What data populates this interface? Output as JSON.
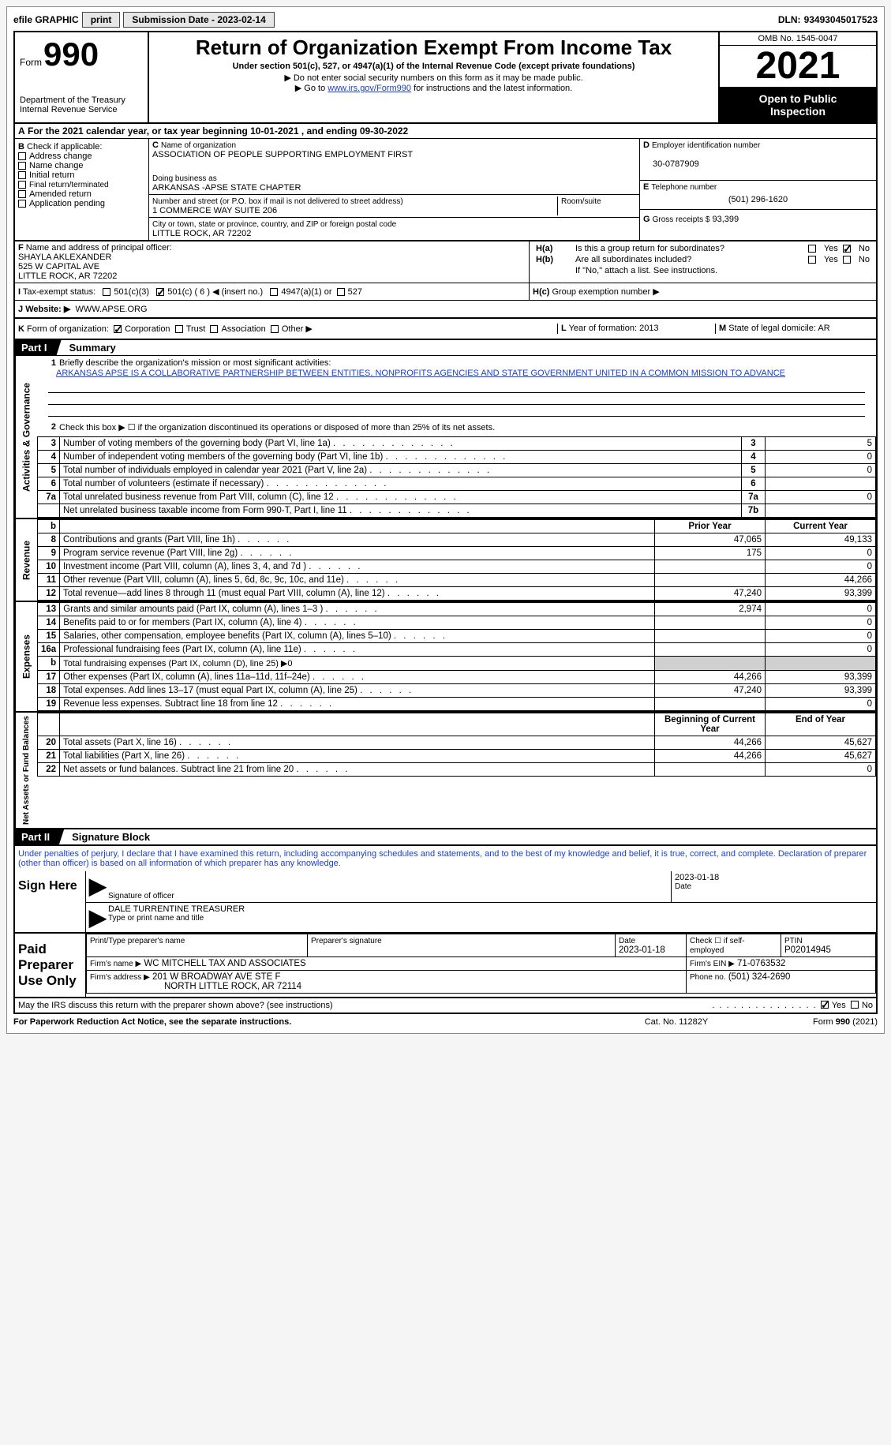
{
  "efile": {
    "graphic": "efile GRAPHIC",
    "print": "print",
    "sub_label": "Submission Date - 2023-02-14",
    "dln_label": "DLN:",
    "dln": "93493045017523"
  },
  "header": {
    "form_word": "Form",
    "form_num": "990",
    "dept": "Department of the Treasury",
    "irs": "Internal Revenue Service",
    "title": "Return of Organization Exempt From Income Tax",
    "sub1": "Under section 501(c), 527, or 4947(a)(1) of the Internal Revenue Code (except private foundations)",
    "sub2": "Do not enter social security numbers on this form as it may be made public.",
    "sub3_pre": "Go to ",
    "sub3_link": "www.irs.gov/Form990",
    "sub3_post": " for instructions and the latest information.",
    "omb": "OMB No. 1545-0047",
    "year": "2021",
    "otp1": "Open to Public",
    "otp2": "Inspection"
  },
  "period": {
    "a": "For the 2021 calendar year, or tax year beginning 10-01-2021    , and ending 09-30-2022"
  },
  "boxB": {
    "check_lbl": "Check if applicable:",
    "addr": "Address change",
    "name": "Name change",
    "init": "Initial return",
    "final": "Final return/terminated",
    "amend": "Amended return",
    "app": "Application pending"
  },
  "boxC": {
    "name_lbl": "Name of organization",
    "name": "ASSOCIATION OF PEOPLE SUPPORTING EMPLOYMENT FIRST",
    "dba_lbl": "Doing business as",
    "dba": "ARKANSAS -APSE STATE CHAPTER",
    "addr_lbl": "Number and street (or P.O. box if mail is not delivered to street address)",
    "room_lbl": "Room/suite",
    "addr": "1 COMMERCE WAY SUITE 206",
    "city_lbl": "City or town, state or province, country, and ZIP or foreign postal code",
    "city": "LITTLE ROCK, AR  72202"
  },
  "boxD": {
    "ein_lbl": "Employer identification number",
    "ein": "30-0787909",
    "tel_lbl": "Telephone number",
    "tel": "(501) 296-1620",
    "gross_lbl": "Gross receipts $",
    "gross": "93,399"
  },
  "boxF": {
    "lbl": "Name and address of principal officer:",
    "name": "SHAYLA AKLEXANDER",
    "addr1": "525 W CAPITAL AVE",
    "addr2": "LITTLE ROCK, AR  72202"
  },
  "boxH": {
    "a": "Is this a group return for subordinates?",
    "b": "Are all subordinates included?",
    "b_note": "If \"No,\" attach a list. See instructions.",
    "c": "Group exemption number ▶",
    "yes": "Yes",
    "no": "No"
  },
  "status": {
    "lbl": "Tax-exempt status:",
    "c3": "501(c)(3)",
    "c": "501(c) ( 6 ) ◀ (insert no.)",
    "a1": "4947(a)(1) or",
    "s527": "527"
  },
  "j": {
    "lbl": "Website: ▶",
    "val": "WWW.APSE.ORG"
  },
  "k": {
    "lbl": "Form of organization:",
    "corp": "Corporation",
    "trust": "Trust",
    "assn": "Association",
    "other": "Other ▶"
  },
  "l": {
    "lbl": "Year of formation:",
    "val": "2013"
  },
  "m": {
    "lbl": "State of legal domicile:",
    "val": "AR"
  },
  "part1": {
    "lbl": "Part I",
    "title": "Summary",
    "line1_lbl": "Briefly describe the organization's mission or most significant activities:",
    "line1": "ARKANSAS APSE IS A COLLABORATIVE PARTNERSHIP BETWEEN ENTITIES, NONPROFITS AGENCIES AND STATE GOVERNMENT UNITED IN A COMMON MISSION TO ADVANCE",
    "line2": "Check this box ▶ ☐  if the organization discontinued its operations or disposed of more than 25% of its net assets.",
    "lines": [
      {
        "n": "3",
        "t": "Number of voting members of the governing body (Part VI, line 1a)",
        "box": "3",
        "v": "5"
      },
      {
        "n": "4",
        "t": "Number of independent voting members of the governing body (Part VI, line 1b)",
        "box": "4",
        "v": "0"
      },
      {
        "n": "5",
        "t": "Total number of individuals employed in calendar year 2021 (Part V, line 2a)",
        "box": "5",
        "v": "0"
      },
      {
        "n": "6",
        "t": "Total number of volunteers (estimate if necessary)",
        "box": "6",
        "v": ""
      },
      {
        "n": "7a",
        "t": "Total unrelated business revenue from Part VIII, column (C), line 12",
        "box": "7a",
        "v": "0"
      },
      {
        "n": "",
        "t": "Net unrelated business taxable income from Form 990-T, Part I, line 11",
        "box": "7b",
        "v": ""
      }
    ],
    "rev_hdr_prior": "Prior Year",
    "rev_hdr_curr": "Current Year",
    "rev": [
      {
        "n": "8",
        "t": "Contributions and grants (Part VIII, line 1h)",
        "p": "47,065",
        "c": "49,133"
      },
      {
        "n": "9",
        "t": "Program service revenue (Part VIII, line 2g)",
        "p": "175",
        "c": "0"
      },
      {
        "n": "10",
        "t": "Investment income (Part VIII, column (A), lines 3, 4, and 7d )",
        "p": "",
        "c": "0"
      },
      {
        "n": "11",
        "t": "Other revenue (Part VIII, column (A), lines 5, 6d, 8c, 9c, 10c, and 11e)",
        "p": "",
        "c": "44,266"
      },
      {
        "n": "12",
        "t": "Total revenue—add lines 8 through 11 (must equal Part VIII, column (A), line 12)",
        "p": "47,240",
        "c": "93,399"
      }
    ],
    "exp": [
      {
        "n": "13",
        "t": "Grants and similar amounts paid (Part IX, column (A), lines 1–3 )",
        "p": "2,974",
        "c": "0"
      },
      {
        "n": "14",
        "t": "Benefits paid to or for members (Part IX, column (A), line 4)",
        "p": "",
        "c": "0"
      },
      {
        "n": "15",
        "t": "Salaries, other compensation, employee benefits (Part IX, column (A), lines 5–10)",
        "p": "",
        "c": "0"
      },
      {
        "n": "16a",
        "t": "Professional fundraising fees (Part IX, column (A), line 11e)",
        "p": "",
        "c": "0"
      },
      {
        "n": "b",
        "t": "Total fundraising expenses (Part IX, column (D), line 25) ▶0",
        "p": "_shade",
        "c": "_shade"
      },
      {
        "n": "17",
        "t": "Other expenses (Part IX, column (A), lines 11a–11d, 11f–24e)",
        "p": "44,266",
        "c": "93,399"
      },
      {
        "n": "18",
        "t": "Total expenses. Add lines 13–17 (must equal Part IX, column (A), line 25)",
        "p": "47,240",
        "c": "93,399"
      },
      {
        "n": "19",
        "t": "Revenue less expenses. Subtract line 18 from line 12",
        "p": "",
        "c": "0"
      }
    ],
    "na_boy": "Beginning of Current Year",
    "na_eoy": "End of Year",
    "na": [
      {
        "n": "20",
        "t": "Total assets (Part X, line 16)",
        "p": "44,266",
        "c": "45,627"
      },
      {
        "n": "21",
        "t": "Total liabilities (Part X, line 26)",
        "p": "44,266",
        "c": "45,627"
      },
      {
        "n": "22",
        "t": "Net assets or fund balances. Subtract line 21 from line 20",
        "p": "",
        "c": "0"
      }
    ]
  },
  "vlabels": {
    "ag": "Activities & Governance",
    "rev": "Revenue",
    "exp": "Expenses",
    "na": "Net Assets or Fund Balances"
  },
  "part2": {
    "lbl": "Part II",
    "title": "Signature Block",
    "penalty": "Under penalties of perjury, I declare that I have examined this return, including accompanying schedules and statements, and to the best of my knowledge and belief, it is true, correct, and complete. Declaration of preparer (other than officer) is based on all information of which preparer has any knowledge.",
    "sign_here": "Sign Here",
    "sig_officer": "Signature of officer",
    "sig_date": "2023-01-18",
    "date_lbl": "Date",
    "name_title": "DALE TURRENTINE  TREASURER",
    "name_title_lbl": "Type or print name and title",
    "ppu": "Paid Preparer Use Only",
    "r1": {
      "a": "Print/Type preparer's name",
      "b": "Preparer's signature",
      "c": "Date",
      "cv": "2023-01-18",
      "d": "Check ☐ if self-employed",
      "e": "PTIN",
      "ev": "P02014945"
    },
    "r2": {
      "a": "Firm's name    ▶",
      "av": "WC MITCHELL TAX AND ASSOCIATES",
      "b": "Firm's EIN ▶",
      "bv": "71-0763532"
    },
    "r3": {
      "a": "Firm's address ▶",
      "av1": "201 W BROADWAY AVE STE F",
      "av2": "NORTH LITTLE ROCK, AR  72114",
      "b": "Phone no.",
      "bv": "(501) 324-2690"
    },
    "discuss": "May the IRS discuss this return with the preparer shown above? (see instructions)",
    "d_yes": "Yes",
    "d_no": "No"
  },
  "footer": {
    "pra": "For Paperwork Reduction Act Notice, see the separate instructions.",
    "cat": "Cat. No. 11282Y",
    "form": "Form 990 (2021)"
  },
  "letters": {
    "A": "A",
    "B": "B",
    "C": "C",
    "D": "D",
    "E": "E",
    "F": "F",
    "G": "G",
    "H_a": "H(a)",
    "H_b": "H(b)",
    "H_c": "H(c)",
    "I": "I",
    "J": "J",
    "K": "K",
    "L": "L",
    "M": "M"
  }
}
